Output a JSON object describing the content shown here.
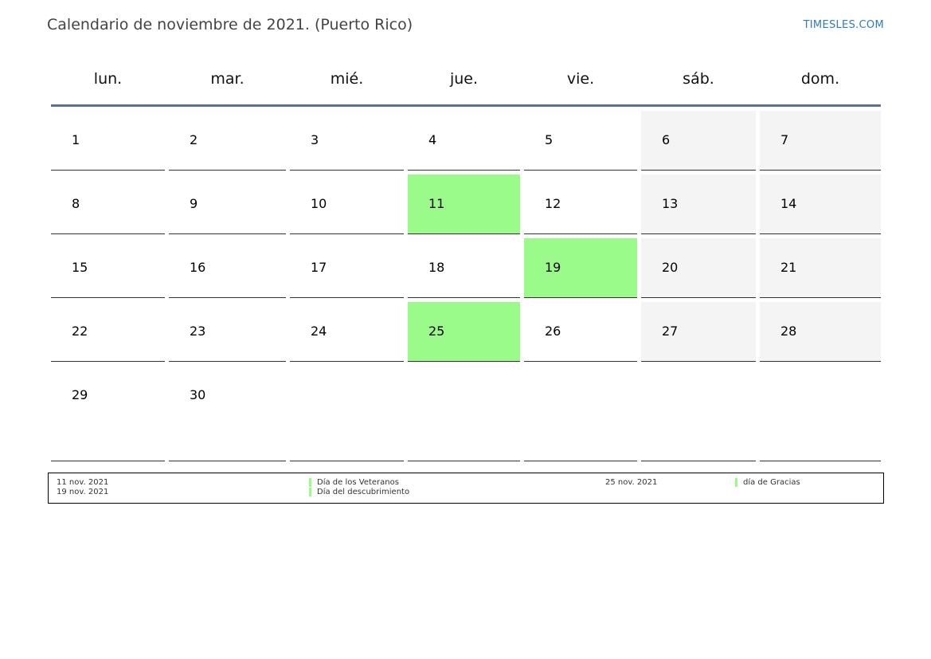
{
  "header": {
    "title": "Calendario de noviembre de 2021. (Puerto Rico)",
    "brand": "TIMESLES.COM"
  },
  "colors": {
    "holiday": "#9afb8a",
    "weekend": "#f4f4f4",
    "header_line": "#5b7393",
    "brand": "#2f7bb8"
  },
  "weekdays": [
    "lun.",
    "mar.",
    "mié.",
    "jue.",
    "vie.",
    "sáb.",
    "dom."
  ],
  "weeks": [
    [
      {
        "d": "1"
      },
      {
        "d": "2"
      },
      {
        "d": "3"
      },
      {
        "d": "4"
      },
      {
        "d": "5"
      },
      {
        "d": "6",
        "weekend": true
      },
      {
        "d": "7",
        "weekend": true
      }
    ],
    [
      {
        "d": "8"
      },
      {
        "d": "9"
      },
      {
        "d": "10"
      },
      {
        "d": "11",
        "holiday": true
      },
      {
        "d": "12"
      },
      {
        "d": "13",
        "weekend": true
      },
      {
        "d": "14",
        "weekend": true
      }
    ],
    [
      {
        "d": "15"
      },
      {
        "d": "16"
      },
      {
        "d": "17"
      },
      {
        "d": "18"
      },
      {
        "d": "19",
        "holiday": true
      },
      {
        "d": "20",
        "weekend": true
      },
      {
        "d": "21",
        "weekend": true
      }
    ],
    [
      {
        "d": "22"
      },
      {
        "d": "23"
      },
      {
        "d": "24"
      },
      {
        "d": "25",
        "holiday": true
      },
      {
        "d": "26"
      },
      {
        "d": "27",
        "weekend": true
      },
      {
        "d": "28",
        "weekend": true
      }
    ],
    [
      {
        "d": "29"
      },
      {
        "d": "30"
      },
      {
        "d": ""
      },
      {
        "d": ""
      },
      {
        "d": ""
      },
      {
        "d": ""
      },
      {
        "d": ""
      }
    ]
  ],
  "holidays": [
    {
      "date": "11 nov. 2021",
      "name": "Día de los Veteranos"
    },
    {
      "date": "19 nov. 2021",
      "name": "Día del descubrimiento"
    },
    {
      "date": "25 nov. 2021",
      "name": "día de Gracias"
    }
  ]
}
